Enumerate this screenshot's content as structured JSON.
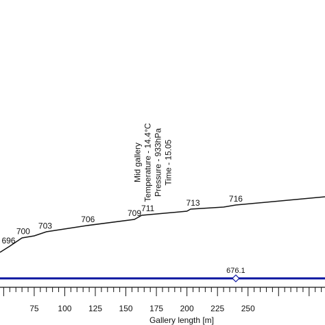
{
  "chart_data": {
    "type": "line",
    "title": "",
    "xlabel": "Gallery length [m]",
    "ylabel": "",
    "xlim": [
      47,
      313
    ],
    "grid": false,
    "x_ticks": [
      75,
      100,
      125,
      150,
      175,
      200,
      225,
      250
    ],
    "profile": {
      "points": [
        {
          "x": 47,
          "v": 693
        },
        {
          "x": 55,
          "v": 696
        },
        {
          "x": 65,
          "v": 700
        },
        {
          "x": 75,
          "v": 701
        },
        {
          "x": 85,
          "v": 703
        },
        {
          "x": 118,
          "v": 706
        },
        {
          "x": 157,
          "v": 709
        },
        {
          "x": 160,
          "v": 710
        },
        {
          "x": 163,
          "v": 711
        },
        {
          "x": 200,
          "v": 713
        },
        {
          "x": 203,
          "v": 714
        },
        {
          "x": 230,
          "v": 715
        },
        {
          "x": 240,
          "v": 716
        },
        {
          "x": 313,
          "v": 720
        }
      ],
      "labels": [
        {
          "x": 54,
          "text": "696"
        },
        {
          "x": 66,
          "text": "700"
        },
        {
          "x": 84,
          "text": "703"
        },
        {
          "x": 119,
          "text": "706"
        },
        {
          "x": 157,
          "text": "709"
        },
        {
          "x": 168,
          "text": "711"
        },
        {
          "x": 205,
          "text": "713"
        },
        {
          "x": 240,
          "text": "716"
        }
      ]
    },
    "reference_line": {
      "value": "676.1",
      "marker_x": 240
    },
    "annotation": {
      "x": 163,
      "lines": [
        "Mid gallery",
        "Temperature - 14.4°C",
        "Pressure - 933hPa",
        "Time - 15.05"
      ]
    },
    "colors": {
      "profile": "#111111",
      "reference": "#0a14a0",
      "axis": "#111111"
    }
  }
}
